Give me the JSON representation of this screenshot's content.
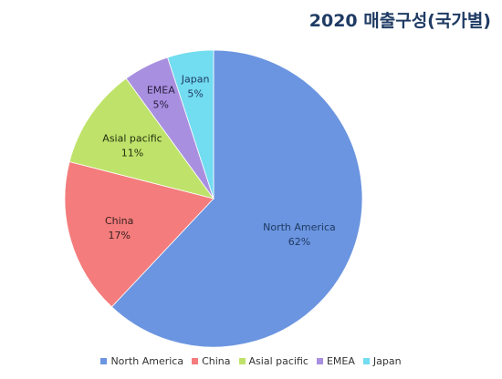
{
  "chart_data": {
    "type": "pie",
    "title": "2020 매출구성(국가별)",
    "categories": [
      "North America",
      "China",
      "Asial pacific",
      "EMEA",
      "Japan"
    ],
    "values": [
      62,
      17,
      11,
      5,
      5
    ],
    "value_labels": [
      "62%",
      "17%",
      "11%",
      "5%",
      "5%"
    ],
    "colors": [
      "#6b95e0",
      "#f47c7c",
      "#bfe36a",
      "#a98fe0",
      "#72dcf0"
    ],
    "label_colors": [
      "#1f3b64",
      "#3a2020",
      "#243010",
      "#2a2040",
      "#1f3b64"
    ],
    "start_angle_deg": 0,
    "direction": "clockwise",
    "legend_position": "bottom"
  }
}
